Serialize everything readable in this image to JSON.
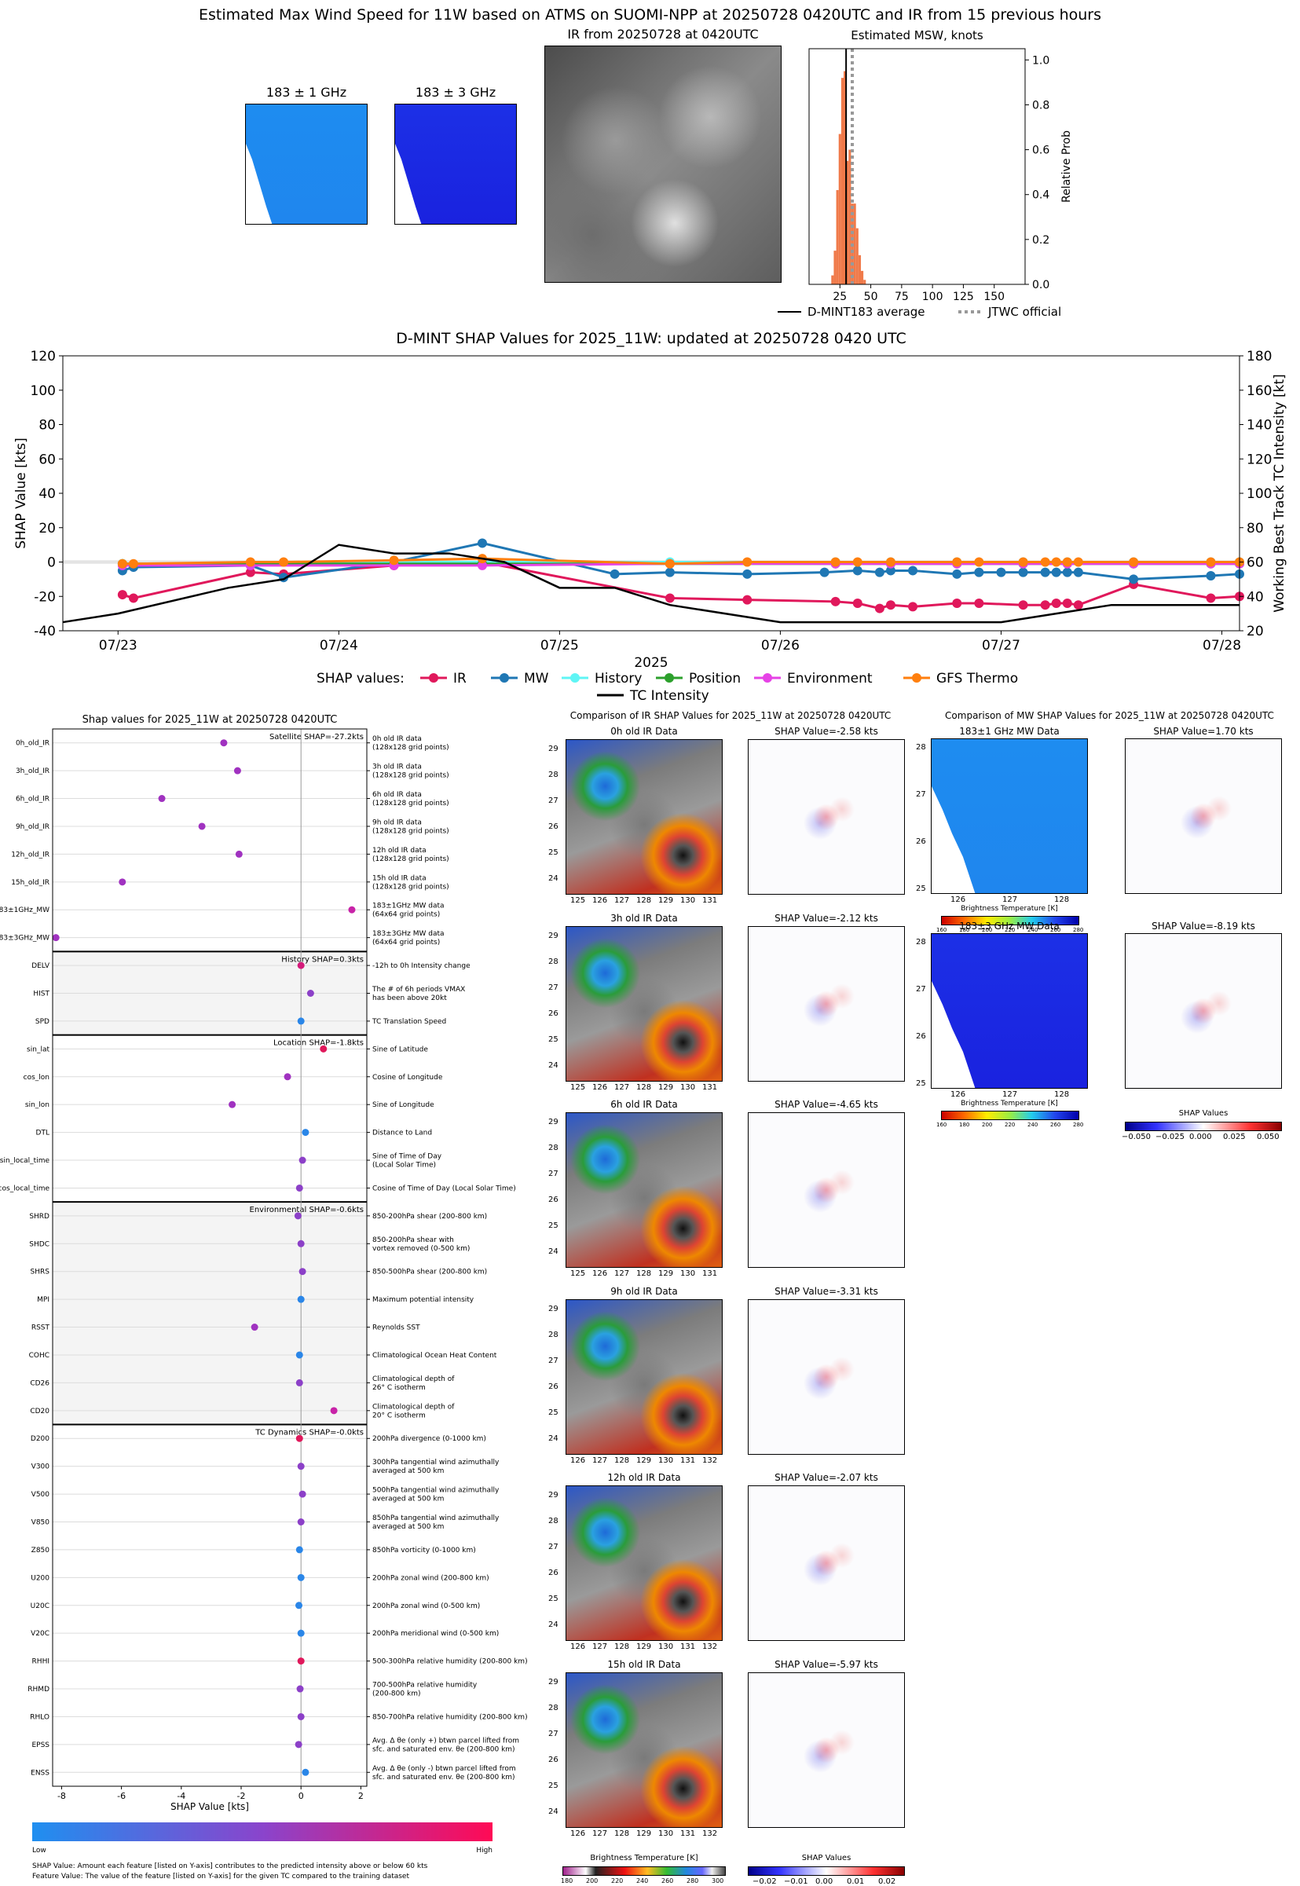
{
  "top": {
    "title": "Estimated Max Wind Speed for 11W based on ATMS on SUOMI-NPP at 20250728 0420UTC and IR from 15 previous hours",
    "mw1_title": "183 ± 1 GHz",
    "mw3_title": "183 ± 3 GHz",
    "ir_title": "IR from 20250728 at 0420UTC",
    "hist_title": "Estimated MSW, knots",
    "hist_ylabel": "Relative Prob",
    "hist_xticks": [
      "25",
      "50",
      "75",
      "100",
      "125",
      "150"
    ],
    "hist_yticks": [
      "0.0",
      "0.2",
      "0.4",
      "0.6",
      "0.8",
      "1.0"
    ],
    "legend_avg": "D-MINT183 average",
    "legend_jtwc": "JTWC official"
  },
  "chart_data": [
    {
      "type": "bar",
      "title": "Estimated MSW, knots",
      "ylabel": "Relative Prob",
      "xlim": [
        0,
        175
      ],
      "ylim": [
        0,
        1.05
      ],
      "bins_x": [
        18,
        20,
        22,
        24,
        26,
        28,
        30,
        32,
        34,
        36,
        38,
        40,
        42,
        44
      ],
      "bins_y": [
        0.04,
        0.15,
        0.42,
        0.67,
        0.92,
        0.95,
        0.55,
        0.6,
        0.36,
        0.36,
        0.25,
        0.13,
        0.06,
        0.02
      ],
      "avg_line_x": 30,
      "jtwc_line_x": 35
    },
    {
      "type": "line",
      "title": "D-MINT SHAP Values for 2025_11W: updated at 20250728 0420 UTC",
      "xlabel": "2025",
      "ylabel": "SHAP Value [kts]",
      "y2label": "Working Best Track TC Intensity [kt]",
      "xticks": [
        "07/23",
        "07/24",
        "07/25",
        "07/26",
        "07/27",
        "07/28"
      ],
      "yticks": [
        "-40",
        "-20",
        "0",
        "20",
        "40",
        "60",
        "80",
        "100",
        "120"
      ],
      "y2ticks": [
        "20",
        "40",
        "60",
        "80",
        "100",
        "120",
        "140",
        "160",
        "180"
      ],
      "xlim": [
        -0.25,
        5.08
      ],
      "ylim": [
        -40,
        120
      ],
      "y2lim": [
        20,
        180
      ],
      "legend_title": "SHAP values:",
      "series": [
        {
          "name": "IR",
          "color": "#e0185b",
          "x": [
            0.02,
            0.07,
            0.6,
            0.75,
            1.25,
            1.65,
            2.5,
            2.85,
            3.25,
            3.35,
            3.45,
            3.5,
            3.6,
            3.8,
            3.9,
            4.1,
            4.2,
            4.25,
            4.3,
            4.35,
            4.6,
            4.95,
            5.08
          ],
          "y": [
            -19,
            -21,
            -6,
            -7,
            -2,
            0,
            -21,
            -22,
            -23,
            -24,
            -27,
            -25,
            -26,
            -24,
            -24,
            -25,
            -25,
            -24,
            -24,
            -25,
            -13,
            -21,
            -20
          ]
        },
        {
          "name": "MW",
          "color": "#1f77b4",
          "x": [
            0.02,
            0.07,
            0.6,
            0.75,
            1.25,
            1.65,
            2.25,
            2.5,
            2.85,
            3.2,
            3.35,
            3.45,
            3.5,
            3.6,
            3.8,
            3.9,
            4.0,
            4.1,
            4.2,
            4.25,
            4.3,
            4.35,
            4.6,
            4.95,
            5.08
          ],
          "y": [
            -5,
            -3,
            -2,
            -9,
            0,
            11,
            -7,
            -6,
            -7,
            -6,
            -5,
            -6,
            -5,
            -5,
            -7,
            -6,
            -6,
            -6,
            -6,
            -6,
            -6,
            -6,
            -10,
            -8,
            -7
          ]
        },
        {
          "name": "History",
          "color": "#5ff5f5",
          "x": [
            0.02,
            0.6,
            1.25,
            1.65,
            2.5,
            3.25,
            3.5,
            3.8,
            4.1,
            4.3,
            4.6,
            4.95,
            5.08
          ],
          "y": [
            -1,
            -1,
            0,
            0,
            0,
            0,
            0,
            0,
            0,
            0,
            0,
            0,
            0
          ]
        },
        {
          "name": "Position",
          "color": "#2ca02c",
          "x": [
            0.02,
            0.6,
            1.25,
            1.65,
            2.5,
            3.25,
            3.5,
            3.8,
            4.1,
            4.3,
            4.6,
            4.95,
            5.08
          ],
          "y": [
            -1,
            -1,
            -1,
            -1,
            -1,
            -1,
            -1,
            -1,
            -1,
            -1,
            -1,
            -1,
            -1
          ]
        },
        {
          "name": "Environment",
          "color": "#e642e6",
          "x": [
            0.02,
            0.6,
            1.25,
            1.65,
            2.5,
            3.25,
            3.5,
            3.8,
            4.1,
            4.3,
            4.6,
            4.95,
            5.08
          ],
          "y": [
            -2,
            -2,
            -2,
            -2,
            -1,
            -1,
            -1,
            -1,
            -1,
            -1,
            -1,
            -1,
            -1
          ]
        },
        {
          "name": "GFS Thermo",
          "color": "#ff7f0e",
          "x": [
            0.02,
            0.07,
            0.6,
            0.75,
            1.25,
            1.65,
            2.5,
            2.85,
            3.25,
            3.35,
            3.5,
            3.8,
            3.9,
            4.1,
            4.2,
            4.25,
            4.3,
            4.35,
            4.6,
            4.95,
            5.08
          ],
          "y": [
            -1,
            -1,
            0,
            0,
            1,
            2,
            -1,
            0,
            0,
            0,
            0,
            0,
            0,
            0,
            0,
            0,
            0,
            0,
            0,
            0,
            0
          ]
        },
        {
          "name": "TC Intensity",
          "color": "#000000",
          "axis": "y2",
          "x": [
            -0.25,
            0.0,
            0.5,
            0.75,
            1.0,
            1.25,
            1.5,
            1.75,
            2.0,
            2.25,
            2.5,
            3.0,
            3.5,
            4.0,
            4.25,
            4.5,
            5.0,
            5.08
          ],
          "y": [
            25,
            30,
            45,
            50,
            70,
            65,
            65,
            60,
            45,
            45,
            35,
            25,
            25,
            25,
            30,
            35,
            35,
            35
          ]
        }
      ]
    },
    {
      "type": "scatter",
      "title": "Shap values for 2025_11W at 20250728 0420UTC",
      "xlabel": "SHAP Value [kts]",
      "xticks": [
        "-8",
        "-6",
        "-4",
        "-2",
        "0",
        "2"
      ],
      "xlim": [
        -8.3,
        2.2
      ],
      "colorbar": {
        "low": "Low",
        "high": "High"
      },
      "groups": [
        {
          "label": "Satellite SHAP=-27.2kts",
          "start": 0,
          "end": 7
        },
        {
          "label": "History SHAP=0.3kts",
          "start": 8,
          "end": 10
        },
        {
          "label": "Location SHAP=-1.8kts",
          "start": 11,
          "end": 16
        },
        {
          "label": "Environmental SHAP=-0.6kts",
          "start": 17,
          "end": 24
        },
        {
          "label": "TC Dynamics SHAP=-0.0kts",
          "start": 25,
          "end": 37
        }
      ],
      "features": [
        {
          "name": "0h_old_IR",
          "desc": [
            "0h old IR data",
            "(128x128 grid points)"
          ],
          "value": -2.58,
          "color": "#a032c0"
        },
        {
          "name": "3h_old_IR",
          "desc": [
            "3h old IR data",
            "(128x128 grid points)"
          ],
          "value": -2.12,
          "color": "#a032c0"
        },
        {
          "name": "6h_old_IR",
          "desc": [
            "6h old IR data",
            "(128x128 grid points)"
          ],
          "value": -4.65,
          "color": "#a032c0"
        },
        {
          "name": "9h_old_IR",
          "desc": [
            "9h old IR data",
            "(128x128 grid points)"
          ],
          "value": -3.31,
          "color": "#a032c0"
        },
        {
          "name": "12h_old_IR",
          "desc": [
            "12h old IR data",
            "(128x128 grid points)"
          ],
          "value": -2.07,
          "color": "#a032c0"
        },
        {
          "name": "15h_old_IR",
          "desc": [
            "15h old IR data",
            "(128x128 grid points)"
          ],
          "value": -5.97,
          "color": "#a032c0"
        },
        {
          "name": "183±1GHz_MW",
          "desc": [
            "183±1GHz MW data",
            "(64x64 grid points)"
          ],
          "value": 1.7,
          "color": "#c823a8"
        },
        {
          "name": "183±3GHz_MW",
          "desc": [
            "183±3GHz MW data",
            "(64x64 grid points)"
          ],
          "value": -8.19,
          "color": "#a032c0"
        },
        {
          "name": "DELV",
          "desc": [
            "-12h to 0h Intensity change"
          ],
          "value": 0.0,
          "color": "#d41a7a"
        },
        {
          "name": "HIST",
          "desc": [
            "The # of 6h periods VMAX",
            "has been above 20kt"
          ],
          "value": 0.32,
          "color": "#8c40c8"
        },
        {
          "name": "SPD",
          "desc": [
            "TC Translation Speed"
          ],
          "value": 0.0,
          "color": "#2a86e8"
        },
        {
          "name": "sin_lat",
          "desc": [
            "Sine of Latitude"
          ],
          "value": 0.75,
          "color": "#e0185b"
        },
        {
          "name": "cos_lon",
          "desc": [
            "Cosine of Longitude"
          ],
          "value": -0.45,
          "color": "#a032c0"
        },
        {
          "name": "sin_lon",
          "desc": [
            "Sine of Longitude"
          ],
          "value": -2.3,
          "color": "#a032c0"
        },
        {
          "name": "DTL",
          "desc": [
            "Distance to Land"
          ],
          "value": 0.15,
          "color": "#2a86e8"
        },
        {
          "name": "sin_local_time",
          "desc": [
            "Sine of Time of Day",
            "(Local Solar Time)"
          ],
          "value": 0.05,
          "color": "#8c40c8"
        },
        {
          "name": "cos_local_time",
          "desc": [
            "Cosine of Time of Day (Local Solar Time)"
          ],
          "value": -0.05,
          "color": "#8c40c8"
        },
        {
          "name": "SHRD",
          "desc": [
            "850-200hPa shear (200-800 km)"
          ],
          "value": -0.1,
          "color": "#8c40c8"
        },
        {
          "name": "SHDC",
          "desc": [
            "850-200hPa shear with",
            "vortex removed (0-500 km)"
          ],
          "value": 0.0,
          "color": "#8c40c8"
        },
        {
          "name": "SHRS",
          "desc": [
            "850-500hPa shear (200-800 km)"
          ],
          "value": 0.05,
          "color": "#8c40c8"
        },
        {
          "name": "MPI",
          "desc": [
            "Maximum potential intensity"
          ],
          "value": 0.0,
          "color": "#2a86e8"
        },
        {
          "name": "RSST",
          "desc": [
            "Reynolds SST"
          ],
          "value": -1.55,
          "color": "#a032c0"
        },
        {
          "name": "COHC",
          "desc": [
            "Climatological Ocean Heat Content"
          ],
          "value": -0.05,
          "color": "#2a86e8"
        },
        {
          "name": "CD26",
          "desc": [
            "Climatological depth of",
            "26° C isotherm"
          ],
          "value": -0.05,
          "color": "#8c40c8"
        },
        {
          "name": "CD20",
          "desc": [
            "Climatological depth of",
            "20° C isotherm"
          ],
          "value": 1.1,
          "color": "#c823a8"
        },
        {
          "name": "D200",
          "desc": [
            "200hPa divergence (0-1000 km)"
          ],
          "value": -0.05,
          "color": "#e0185b"
        },
        {
          "name": "V300",
          "desc": [
            "300hPa tangential wind azimuthally",
            "averaged at 500 km"
          ],
          "value": 0.0,
          "color": "#8c40c8"
        },
        {
          "name": "V500",
          "desc": [
            "500hPa tangential wind azimuthally",
            "averaged at 500 km"
          ],
          "value": 0.05,
          "color": "#8c40c8"
        },
        {
          "name": "V850",
          "desc": [
            "850hPa tangential wind azimuthally",
            "averaged at 500 km"
          ],
          "value": 0.0,
          "color": "#8c40c8"
        },
        {
          "name": "Z850",
          "desc": [
            "850hPa vorticity (0-1000 km)"
          ],
          "value": -0.05,
          "color": "#2a86e8"
        },
        {
          "name": "U200",
          "desc": [
            "200hPa zonal wind (200-800 km)"
          ],
          "value": 0.0,
          "color": "#2a86e8"
        },
        {
          "name": "U20C",
          "desc": [
            "200hPa zonal wind (0-500 km)"
          ],
          "value": -0.07,
          "color": "#2a86e8"
        },
        {
          "name": "V20C",
          "desc": [
            "200hPa meridional wind (0-500 km)"
          ],
          "value": 0.0,
          "color": "#2a86e8"
        },
        {
          "name": "RHHI",
          "desc": [
            "500-300hPa relative humidity (200-800 km)"
          ],
          "value": 0.0,
          "color": "#e0185b"
        },
        {
          "name": "RHMD",
          "desc": [
            "700-500hPa relative humidity",
            "(200-800 km)"
          ],
          "value": -0.03,
          "color": "#8c40c8"
        },
        {
          "name": "RHLO",
          "desc": [
            "850-700hPa relative humidity (200-800 km)"
          ],
          "value": 0.0,
          "color": "#8c40c8"
        },
        {
          "name": "EPSS",
          "desc": [
            "Avg. Δ θe (only +) btwn parcel lifted from",
            "sfc. and saturated env. θe (200-800 km)"
          ],
          "value": -0.08,
          "color": "#8c40c8"
        },
        {
          "name": "ENSS",
          "desc": [
            "Avg. Δ θe (only -) btwn parcel lifted from",
            "sfc. and saturated env. θe (200-800 km)"
          ],
          "value": 0.15,
          "color": "#2a86e8"
        }
      ]
    }
  ],
  "footnotes": {
    "line1": "SHAP Value: Amount each feature [listed on Y-axis] contributes to the predicted intensity above or below 60 kts",
    "line2": "Feature Value: The value of the feature [listed on Y-axis] for the given TC compared to the training dataset"
  },
  "ir_panel": {
    "title": "Comparison of IR SHAP Values for 2025_11W at 20250728 0420UTC",
    "rows": [
      {
        "label": "0h old IR Data",
        "shap": "SHAP Value=-2.58 kts",
        "xticks": [
          "125",
          "126",
          "127",
          "128",
          "129",
          "130",
          "131"
        ]
      },
      {
        "label": "3h old IR Data",
        "shap": "SHAP Value=-2.12 kts",
        "xticks": [
          "125",
          "126",
          "127",
          "128",
          "129",
          "130",
          "131"
        ]
      },
      {
        "label": "6h old IR Data",
        "shap": "SHAP Value=-4.65 kts",
        "xticks": [
          "125",
          "126",
          "127",
          "128",
          "129",
          "130",
          "131"
        ]
      },
      {
        "label": "9h old IR Data",
        "shap": "SHAP Value=-3.31 kts",
        "xticks": [
          "126",
          "127",
          "128",
          "129",
          "130",
          "131",
          "132"
        ]
      },
      {
        "label": "12h old IR Data",
        "shap": "SHAP Value=-2.07 kts",
        "xticks": [
          "126",
          "127",
          "128",
          "129",
          "130",
          "131",
          "132"
        ]
      },
      {
        "label": "15h old IR Data",
        "shap": "SHAP Value=-5.97 kts",
        "xticks": [
          "126",
          "127",
          "128",
          "129",
          "130",
          "131",
          "132"
        ]
      }
    ],
    "yticks": [
      "29",
      "28",
      "27",
      "26",
      "25",
      "24"
    ],
    "bt_label": "Brightness Temperature [K]",
    "bt_ticks": [
      "180",
      "200",
      "220",
      "240",
      "260",
      "280",
      "300"
    ],
    "shap_label": "SHAP Values",
    "shap_ticks": [
      "−0.02",
      "−0.01",
      "0.00",
      "0.01",
      "0.02"
    ]
  },
  "mw_panel": {
    "title": "Comparison of MW SHAP Values for 2025_11W at 20250728 0420UTC",
    "rows": [
      {
        "label": "183±1 GHz MW Data",
        "shap": "SHAP Value=1.70 kts"
      },
      {
        "label": "183±3 GHz MW Data",
        "shap": "SHAP Value=-8.19 kts"
      }
    ],
    "yticks": [
      "28",
      "27",
      "26",
      "25"
    ],
    "xticks": [
      "126",
      "127",
      "128"
    ],
    "bt_label": "Brightness Temperature [K]",
    "bt_ticks": [
      "160",
      "180",
      "200",
      "220",
      "240",
      "260",
      "280"
    ],
    "shap_label": "SHAP Values",
    "shap_ticks": [
      "−0.050",
      "−0.025",
      "0.000",
      "0.025",
      "0.050"
    ]
  }
}
